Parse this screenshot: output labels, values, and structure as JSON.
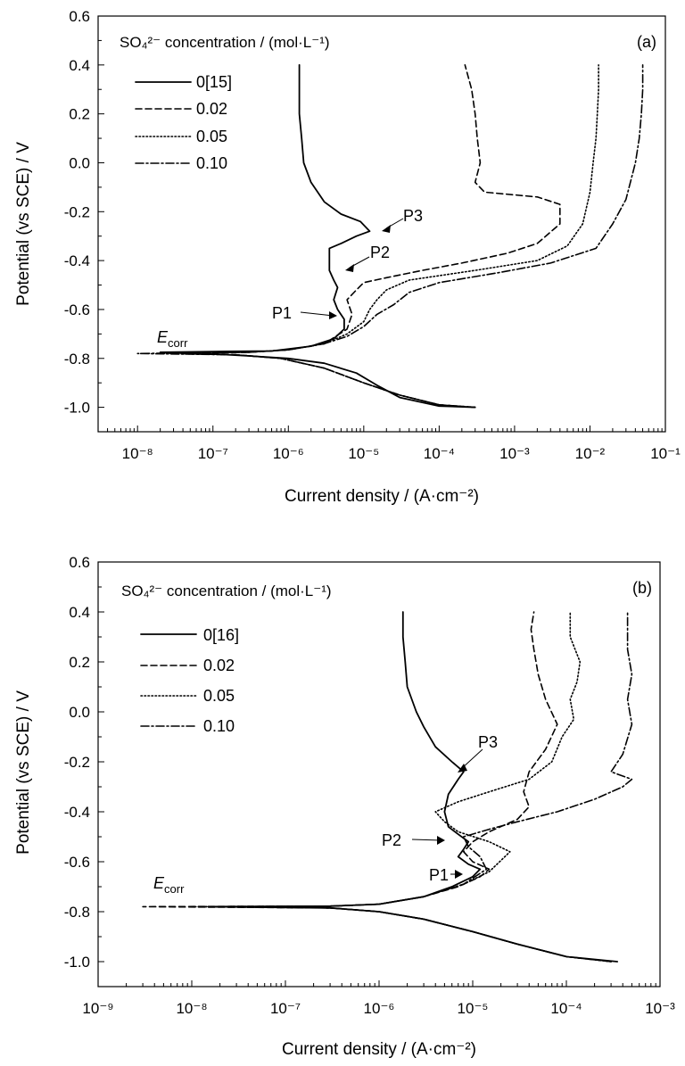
{
  "chart_data": [
    {
      "type": "line",
      "panel_label": "(a)",
      "xlabel": "Current density / (A·cm⁻²)",
      "ylabel": "Potential (vs SCE) / V",
      "xscale": "log",
      "xlim": [
        3e-09,
        0.1
      ],
      "ylim": [
        -1.1,
        0.6
      ],
      "x_ticks": [
        "10⁻⁸",
        "10⁻⁷",
        "10⁻⁶",
        "10⁻⁵",
        "10⁻⁴",
        "10⁻³",
        "10⁻²",
        "10⁻¹"
      ],
      "y_ticks": [
        "-1.0",
        "-0.8",
        "-0.6",
        "-0.4",
        "-0.2",
        "0.0",
        "0.2",
        "0.4",
        "0.6"
      ],
      "legend_title": "SO₄²⁻ concentration / (mol·L⁻¹)",
      "legend_position": "top-left",
      "annotations": [
        "P1",
        "P2",
        "P3",
        "Ecorr"
      ],
      "series": [
        {
          "name": "0[15]",
          "style": "solid",
          "points": [
            [
              0.0003,
              -1.0
            ],
            [
              0.0001,
              -0.995
            ],
            [
              3e-05,
              -0.96
            ],
            [
              1.5e-05,
              -0.91
            ],
            [
              8e-06,
              -0.86
            ],
            [
              3e-06,
              -0.82
            ],
            [
              1e-06,
              -0.8
            ],
            [
              3e-07,
              -0.79
            ],
            [
              8e-08,
              -0.78
            ],
            [
              2e-08,
              -0.775
            ],
            [
              1e-07,
              -0.772
            ],
            [
              6e-07,
              -0.77
            ],
            [
              2e-06,
              -0.75
            ],
            [
              4e-06,
              -0.72
            ],
            [
              5.5e-06,
              -0.68
            ],
            [
              5.5e-06,
              -0.64
            ],
            [
              4.5e-06,
              -0.6
            ],
            [
              4e-06,
              -0.56
            ],
            [
              4.5e-06,
              -0.51
            ],
            [
              4e-06,
              -0.48
            ],
            [
              3.5e-06,
              -0.44
            ],
            [
              3.5e-06,
              -0.39
            ],
            [
              3.5e-06,
              -0.35
            ],
            [
              5e-06,
              -0.33
            ],
            [
              8e-06,
              -0.3
            ],
            [
              1.2e-05,
              -0.28
            ],
            [
              9e-06,
              -0.24
            ],
            [
              5e-06,
              -0.21
            ],
            [
              3e-06,
              -0.16
            ],
            [
              2e-06,
              -0.08
            ],
            [
              1.6e-06,
              0.0
            ],
            [
              1.5e-06,
              0.1
            ],
            [
              1.4e-06,
              0.2
            ],
            [
              1.4e-06,
              0.3
            ],
            [
              1.4e-06,
              0.4
            ]
          ]
        },
        {
          "name": "0.02",
          "style": "dashed",
          "points": [
            [
              0.0003,
              -1.0
            ],
            [
              0.0001,
              -0.99
            ],
            [
              3e-05,
              -0.95
            ],
            [
              1e-05,
              -0.9
            ],
            [
              3e-06,
              -0.84
            ],
            [
              8e-07,
              -0.8
            ],
            [
              2e-07,
              -0.785
            ],
            [
              5e-08,
              -0.78
            ],
            [
              3e-07,
              -0.775
            ],
            [
              1e-06,
              -0.765
            ],
            [
              3e-06,
              -0.74
            ],
            [
              6e-06,
              -0.68
            ],
            [
              7e-06,
              -0.62
            ],
            [
              6e-06,
              -0.56
            ],
            [
              8e-06,
              -0.52
            ],
            [
              1e-05,
              -0.49
            ],
            [
              2e-05,
              -0.47
            ],
            [
              6e-05,
              -0.44
            ],
            [
              0.0002,
              -0.41
            ],
            [
              0.0008,
              -0.37
            ],
            [
              0.002,
              -0.33
            ],
            [
              0.004,
              -0.25
            ],
            [
              0.004,
              -0.17
            ],
            [
              0.002,
              -0.14
            ],
            [
              0.0004,
              -0.12
            ],
            [
              0.0003,
              -0.08
            ],
            [
              0.00035,
              0.0
            ],
            [
              0.00032,
              0.1
            ],
            [
              0.0003,
              0.2
            ],
            [
              0.00027,
              0.3
            ],
            [
              0.00022,
              0.4
            ]
          ]
        },
        {
          "name": "0.05",
          "style": "dotted",
          "points": [
            [
              0.0003,
              -1.0
            ],
            [
              0.0001,
              -0.99
            ],
            [
              3e-05,
              -0.95
            ],
            [
              1e-05,
              -0.9
            ],
            [
              3e-06,
              -0.84
            ],
            [
              8e-07,
              -0.8
            ],
            [
              2e-07,
              -0.785
            ],
            [
              2e-08,
              -0.78
            ],
            [
              3e-07,
              -0.775
            ],
            [
              1e-06,
              -0.765
            ],
            [
              3e-06,
              -0.74
            ],
            [
              6e-06,
              -0.7
            ],
            [
              1e-05,
              -0.65
            ],
            [
              1.2e-05,
              -0.6
            ],
            [
              1.5e-05,
              -0.56
            ],
            [
              2e-05,
              -0.52
            ],
            [
              4e-05,
              -0.48
            ],
            [
              0.0003,
              -0.44
            ],
            [
              0.002,
              -0.4
            ],
            [
              0.005,
              -0.34
            ],
            [
              0.008,
              -0.25
            ],
            [
              0.01,
              -0.12
            ],
            [
              0.011,
              0.0
            ],
            [
              0.012,
              0.1
            ],
            [
              0.0125,
              0.2
            ],
            [
              0.013,
              0.3
            ],
            [
              0.013,
              0.4
            ]
          ]
        },
        {
          "name": "0.10",
          "style": "dash-dot",
          "points": [
            [
              0.0003,
              -1.0
            ],
            [
              0.0001,
              -0.99
            ],
            [
              3e-05,
              -0.95
            ],
            [
              1e-05,
              -0.9
            ],
            [
              3e-06,
              -0.84
            ],
            [
              8e-07,
              -0.8
            ],
            [
              2e-07,
              -0.785
            ],
            [
              1e-08,
              -0.78
            ],
            [
              3e-07,
              -0.775
            ],
            [
              1e-06,
              -0.765
            ],
            [
              3e-06,
              -0.74
            ],
            [
              6e-06,
              -0.71
            ],
            [
              1e-05,
              -0.67
            ],
            [
              1.5e-05,
              -0.62
            ],
            [
              2.5e-05,
              -0.58
            ],
            [
              4e-05,
              -0.53
            ],
            [
              0.0001,
              -0.49
            ],
            [
              0.0006,
              -0.45
            ],
            [
              0.003,
              -0.41
            ],
            [
              0.012,
              -0.35
            ],
            [
              0.02,
              -0.25
            ],
            [
              0.03,
              -0.15
            ],
            [
              0.04,
              0.0
            ],
            [
              0.045,
              0.1
            ],
            [
              0.048,
              0.2
            ],
            [
              0.05,
              0.3
            ],
            [
              0.05,
              0.4
            ]
          ]
        }
      ]
    },
    {
      "type": "line",
      "panel_label": "(b)",
      "xlabel": "Current density / (A·cm⁻²)",
      "ylabel": "Potential (vs SCE) / V",
      "xscale": "log",
      "xlim": [
        1e-09,
        0.001
      ],
      "ylim": [
        -1.1,
        0.6
      ],
      "x_ticks": [
        "10⁻⁹",
        "10⁻⁸",
        "10⁻⁷",
        "10⁻⁶",
        "10⁻⁵",
        "10⁻⁴",
        "10⁻³"
      ],
      "y_ticks": [
        "-1.0",
        "-0.8",
        "-0.6",
        "-0.4",
        "-0.2",
        "0.0",
        "0.2",
        "0.4",
        "0.6"
      ],
      "legend_title": "SO₄²⁻ concentration / (mol·L⁻¹)",
      "legend_position": "top-left",
      "annotations": [
        "P1",
        "P2",
        "P3",
        "Ecorr"
      ],
      "series": [
        {
          "name": "0[16]",
          "style": "solid",
          "points": [
            [
              0.00035,
              -1.0
            ],
            [
              0.0001,
              -0.98
            ],
            [
              3e-05,
              -0.93
            ],
            [
              1e-05,
              -0.88
            ],
            [
              3e-06,
              -0.83
            ],
            [
              1e-06,
              -0.8
            ],
            [
              3e-07,
              -0.785
            ],
            [
              1.5e-08,
              -0.78
            ],
            [
              3e-07,
              -0.778
            ],
            [
              1e-06,
              -0.77
            ],
            [
              3e-06,
              -0.74
            ],
            [
              6e-06,
              -0.7
            ],
            [
              1e-05,
              -0.66
            ],
            [
              1.2e-05,
              -0.63
            ],
            [
              9e-06,
              -0.61
            ],
            [
              7e-06,
              -0.58
            ],
            [
              8e-06,
              -0.55
            ],
            [
              9e-06,
              -0.52
            ],
            [
              7e-06,
              -0.49
            ],
            [
              5.5e-06,
              -0.46
            ],
            [
              5e-06,
              -0.4
            ],
            [
              5.5e-06,
              -0.33
            ],
            [
              7e-06,
              -0.27
            ],
            [
              8e-06,
              -0.24
            ],
            [
              6e-06,
              -0.2
            ],
            [
              4e-06,
              -0.14
            ],
            [
              3e-06,
              -0.06
            ],
            [
              2.5e-06,
              0.0
            ],
            [
              2e-06,
              0.1
            ],
            [
              1.9e-06,
              0.2
            ],
            [
              1.8e-06,
              0.3
            ],
            [
              1.8e-06,
              0.4
            ]
          ]
        },
        {
          "name": "0.02",
          "style": "dashed",
          "points": [
            [
              0.0003,
              -1.0
            ],
            [
              0.0001,
              -0.98
            ],
            [
              3e-05,
              -0.93
            ],
            [
              1e-05,
              -0.88
            ],
            [
              3e-06,
              -0.83
            ],
            [
              1e-06,
              -0.8
            ],
            [
              3e-07,
              -0.785
            ],
            [
              3e-09,
              -0.78
            ],
            [
              3e-07,
              -0.778
            ],
            [
              1e-06,
              -0.77
            ],
            [
              3e-06,
              -0.74
            ],
            [
              7e-06,
              -0.7
            ],
            [
              1.2e-05,
              -0.66
            ],
            [
              1.5e-05,
              -0.63
            ],
            [
              1e-05,
              -0.6
            ],
            [
              8e-06,
              -0.56
            ],
            [
              1e-05,
              -0.52
            ],
            [
              1.5e-05,
              -0.48
            ],
            [
              3e-05,
              -0.43
            ],
            [
              4e-05,
              -0.38
            ],
            [
              3.5e-05,
              -0.32
            ],
            [
              4e-05,
              -0.24
            ],
            [
              6e-05,
              -0.15
            ],
            [
              8e-05,
              -0.05
            ],
            [
              6e-05,
              0.05
            ],
            [
              5e-05,
              0.15
            ],
            [
              4.5e-05,
              0.25
            ],
            [
              4.2e-05,
              0.33
            ],
            [
              4.5e-05,
              0.4
            ]
          ]
        },
        {
          "name": "0.05",
          "style": "dotted",
          "points": [
            [
              0.0003,
              -1.0
            ],
            [
              0.0001,
              -0.98
            ],
            [
              3e-05,
              -0.93
            ],
            [
              1e-05,
              -0.88
            ],
            [
              3e-06,
              -0.83
            ],
            [
              1e-06,
              -0.8
            ],
            [
              3e-07,
              -0.785
            ],
            [
              1e-08,
              -0.78
            ],
            [
              3e-07,
              -0.778
            ],
            [
              1e-06,
              -0.77
            ],
            [
              3e-06,
              -0.74
            ],
            [
              8e-06,
              -0.69
            ],
            [
              1.5e-05,
              -0.64
            ],
            [
              2.5e-05,
              -0.56
            ],
            [
              1.5e-05,
              -0.52
            ],
            [
              7e-06,
              -0.48
            ],
            [
              5e-06,
              -0.44
            ],
            [
              4e-06,
              -0.4
            ],
            [
              7e-06,
              -0.36
            ],
            [
              1.5e-05,
              -0.32
            ],
            [
              4e-05,
              -0.27
            ],
            [
              7e-05,
              -0.2
            ],
            [
              9e-05,
              -0.1
            ],
            [
              0.00012,
              -0.03
            ],
            [
              0.00011,
              0.05
            ],
            [
              0.00013,
              0.12
            ],
            [
              0.00014,
              0.2
            ],
            [
              0.00011,
              0.3
            ],
            [
              0.00011,
              0.4
            ]
          ]
        },
        {
          "name": "0.10",
          "style": "dash-dot",
          "points": [
            [
              0.0003,
              -1.0
            ],
            [
              0.0001,
              -0.98
            ],
            [
              3e-05,
              -0.93
            ],
            [
              1e-05,
              -0.88
            ],
            [
              3e-06,
              -0.83
            ],
            [
              1e-06,
              -0.8
            ],
            [
              3e-07,
              -0.785
            ],
            [
              3e-08,
              -0.78
            ],
            [
              3e-07,
              -0.778
            ],
            [
              1e-06,
              -0.77
            ],
            [
              3e-06,
              -0.74
            ],
            [
              8e-06,
              -0.69
            ],
            [
              1.4e-05,
              -0.63
            ],
            [
              1.2e-05,
              -0.58
            ],
            [
              9e-06,
              -0.54
            ],
            [
              8e-06,
              -0.5
            ],
            [
              1.5e-05,
              -0.47
            ],
            [
              3e-05,
              -0.44
            ],
            [
              8e-05,
              -0.4
            ],
            [
              0.0002,
              -0.35
            ],
            [
              0.0004,
              -0.3
            ],
            [
              0.0005,
              -0.27
            ],
            [
              0.0003,
              -0.24
            ],
            [
              0.0004,
              -0.17
            ],
            [
              0.0005,
              -0.05
            ],
            [
              0.00045,
              0.05
            ],
            [
              0.0005,
              0.15
            ],
            [
              0.00045,
              0.25
            ],
            [
              0.00045,
              0.4
            ]
          ]
        }
      ]
    }
  ]
}
